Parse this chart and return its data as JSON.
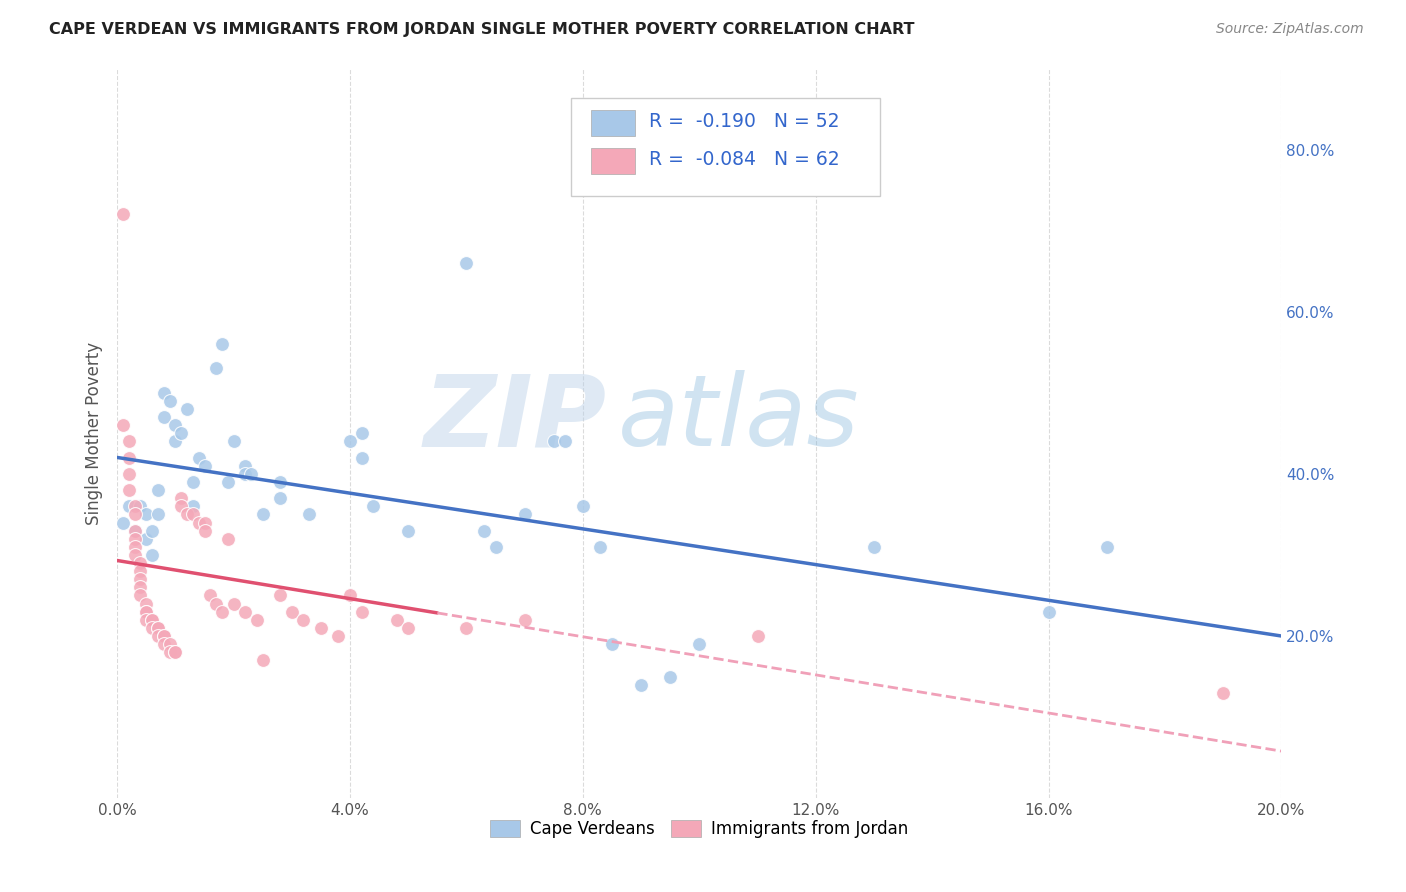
{
  "title": "CAPE VERDEAN VS IMMIGRANTS FROM JORDAN SINGLE MOTHER POVERTY CORRELATION CHART",
  "source": "Source: ZipAtlas.com",
  "ylabel": "Single Mother Poverty",
  "legend_labels": [
    "Cape Verdeans",
    "Immigrants from Jordan"
  ],
  "r_blue": -0.19,
  "n_blue": 52,
  "r_pink": -0.084,
  "n_pink": 62,
  "blue_color": "#a8c8e8",
  "pink_color": "#f4a8b8",
  "blue_line_color": "#4472c4",
  "pink_line_color": "#e05070",
  "pink_dash_color": "#f0a0b8",
  "watermark_zip": "ZIP",
  "watermark_atlas": "atlas",
  "blue_points": [
    [
      0.001,
      0.34
    ],
    [
      0.002,
      0.36
    ],
    [
      0.003,
      0.33
    ],
    [
      0.004,
      0.36
    ],
    [
      0.005,
      0.35
    ],
    [
      0.005,
      0.32
    ],
    [
      0.006,
      0.3
    ],
    [
      0.006,
      0.33
    ],
    [
      0.007,
      0.38
    ],
    [
      0.007,
      0.35
    ],
    [
      0.008,
      0.5
    ],
    [
      0.008,
      0.47
    ],
    [
      0.009,
      0.49
    ],
    [
      0.01,
      0.46
    ],
    [
      0.01,
      0.44
    ],
    [
      0.011,
      0.45
    ],
    [
      0.012,
      0.48
    ],
    [
      0.013,
      0.39
    ],
    [
      0.013,
      0.36
    ],
    [
      0.014,
      0.42
    ],
    [
      0.015,
      0.41
    ],
    [
      0.017,
      0.53
    ],
    [
      0.018,
      0.56
    ],
    [
      0.019,
      0.39
    ],
    [
      0.02,
      0.44
    ],
    [
      0.022,
      0.41
    ],
    [
      0.022,
      0.4
    ],
    [
      0.023,
      0.4
    ],
    [
      0.025,
      0.35
    ],
    [
      0.028,
      0.39
    ],
    [
      0.028,
      0.37
    ],
    [
      0.033,
      0.35
    ],
    [
      0.04,
      0.44
    ],
    [
      0.042,
      0.45
    ],
    [
      0.042,
      0.42
    ],
    [
      0.044,
      0.36
    ],
    [
      0.05,
      0.33
    ],
    [
      0.06,
      0.66
    ],
    [
      0.063,
      0.33
    ],
    [
      0.065,
      0.31
    ],
    [
      0.07,
      0.35
    ],
    [
      0.075,
      0.44
    ],
    [
      0.077,
      0.44
    ],
    [
      0.08,
      0.36
    ],
    [
      0.083,
      0.31
    ],
    [
      0.085,
      0.19
    ],
    [
      0.09,
      0.14
    ],
    [
      0.095,
      0.15
    ],
    [
      0.1,
      0.19
    ],
    [
      0.13,
      0.31
    ],
    [
      0.16,
      0.23
    ],
    [
      0.17,
      0.31
    ]
  ],
  "pink_points": [
    [
      0.001,
      0.72
    ],
    [
      0.001,
      0.46
    ],
    [
      0.002,
      0.44
    ],
    [
      0.002,
      0.42
    ],
    [
      0.002,
      0.4
    ],
    [
      0.002,
      0.38
    ],
    [
      0.003,
      0.36
    ],
    [
      0.003,
      0.35
    ],
    [
      0.003,
      0.33
    ],
    [
      0.003,
      0.32
    ],
    [
      0.003,
      0.31
    ],
    [
      0.003,
      0.3
    ],
    [
      0.004,
      0.29
    ],
    [
      0.004,
      0.28
    ],
    [
      0.004,
      0.27
    ],
    [
      0.004,
      0.26
    ],
    [
      0.004,
      0.25
    ],
    [
      0.005,
      0.24
    ],
    [
      0.005,
      0.23
    ],
    [
      0.005,
      0.23
    ],
    [
      0.005,
      0.22
    ],
    [
      0.006,
      0.22
    ],
    [
      0.006,
      0.22
    ],
    [
      0.006,
      0.21
    ],
    [
      0.007,
      0.21
    ],
    [
      0.007,
      0.21
    ],
    [
      0.007,
      0.2
    ],
    [
      0.008,
      0.2
    ],
    [
      0.008,
      0.2
    ],
    [
      0.008,
      0.19
    ],
    [
      0.009,
      0.19
    ],
    [
      0.009,
      0.18
    ],
    [
      0.01,
      0.18
    ],
    [
      0.01,
      0.18
    ],
    [
      0.011,
      0.37
    ],
    [
      0.011,
      0.36
    ],
    [
      0.012,
      0.35
    ],
    [
      0.013,
      0.35
    ],
    [
      0.014,
      0.34
    ],
    [
      0.015,
      0.34
    ],
    [
      0.015,
      0.33
    ],
    [
      0.016,
      0.25
    ],
    [
      0.017,
      0.24
    ],
    [
      0.018,
      0.23
    ],
    [
      0.019,
      0.32
    ],
    [
      0.02,
      0.24
    ],
    [
      0.022,
      0.23
    ],
    [
      0.024,
      0.22
    ],
    [
      0.025,
      0.17
    ],
    [
      0.028,
      0.25
    ],
    [
      0.03,
      0.23
    ],
    [
      0.032,
      0.22
    ],
    [
      0.035,
      0.21
    ],
    [
      0.038,
      0.2
    ],
    [
      0.04,
      0.25
    ],
    [
      0.042,
      0.23
    ],
    [
      0.048,
      0.22
    ],
    [
      0.05,
      0.21
    ],
    [
      0.06,
      0.21
    ],
    [
      0.07,
      0.22
    ],
    [
      0.11,
      0.2
    ],
    [
      0.19,
      0.13
    ]
  ],
  "xlim": [
    0.0,
    0.2
  ],
  "ylim": [
    0.0,
    0.9
  ],
  "xticks": [
    0.0,
    0.04,
    0.08,
    0.12,
    0.16,
    0.2
  ],
  "yticks_right": [
    0.2,
    0.4,
    0.6,
    0.8
  ],
  "background_color": "#ffffff",
  "grid_color": "#d8d8d8"
}
